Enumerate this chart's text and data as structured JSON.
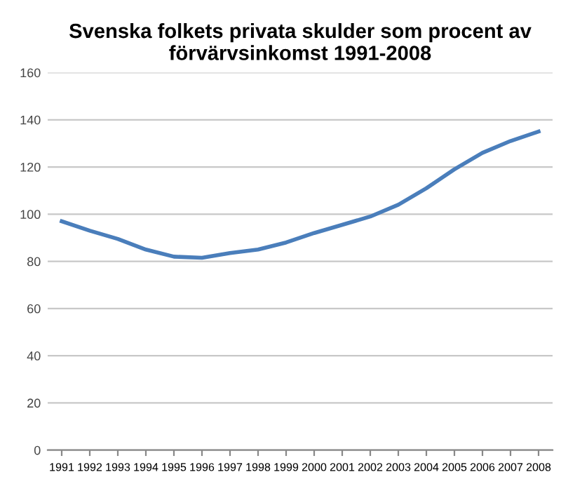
{
  "chart_data": {
    "type": "line",
    "title": "Svenska folkets privata skulder som procent av förvärvsinkomst 1991-2008",
    "categories": [
      "1991",
      "1992",
      "1993",
      "1994",
      "1995",
      "1996",
      "1997",
      "1998",
      "1999",
      "2000",
      "2001",
      "2002",
      "2003",
      "2004",
      "2005",
      "2006",
      "2007",
      "2008"
    ],
    "series": [
      {
        "color": "#4a7ebb",
        "values": [
          97,
          93,
          89.5,
          85,
          82,
          81.5,
          83.5,
          85,
          88,
          92,
          95.5,
          99,
          104,
          111,
          119,
          126,
          131,
          135
        ]
      }
    ],
    "ylim": [
      0,
      160
    ],
    "yticks": [
      0,
      20,
      40,
      60,
      80,
      100,
      120,
      140,
      160
    ],
    "grid": "y",
    "marker": "none",
    "line_style": "solid"
  }
}
